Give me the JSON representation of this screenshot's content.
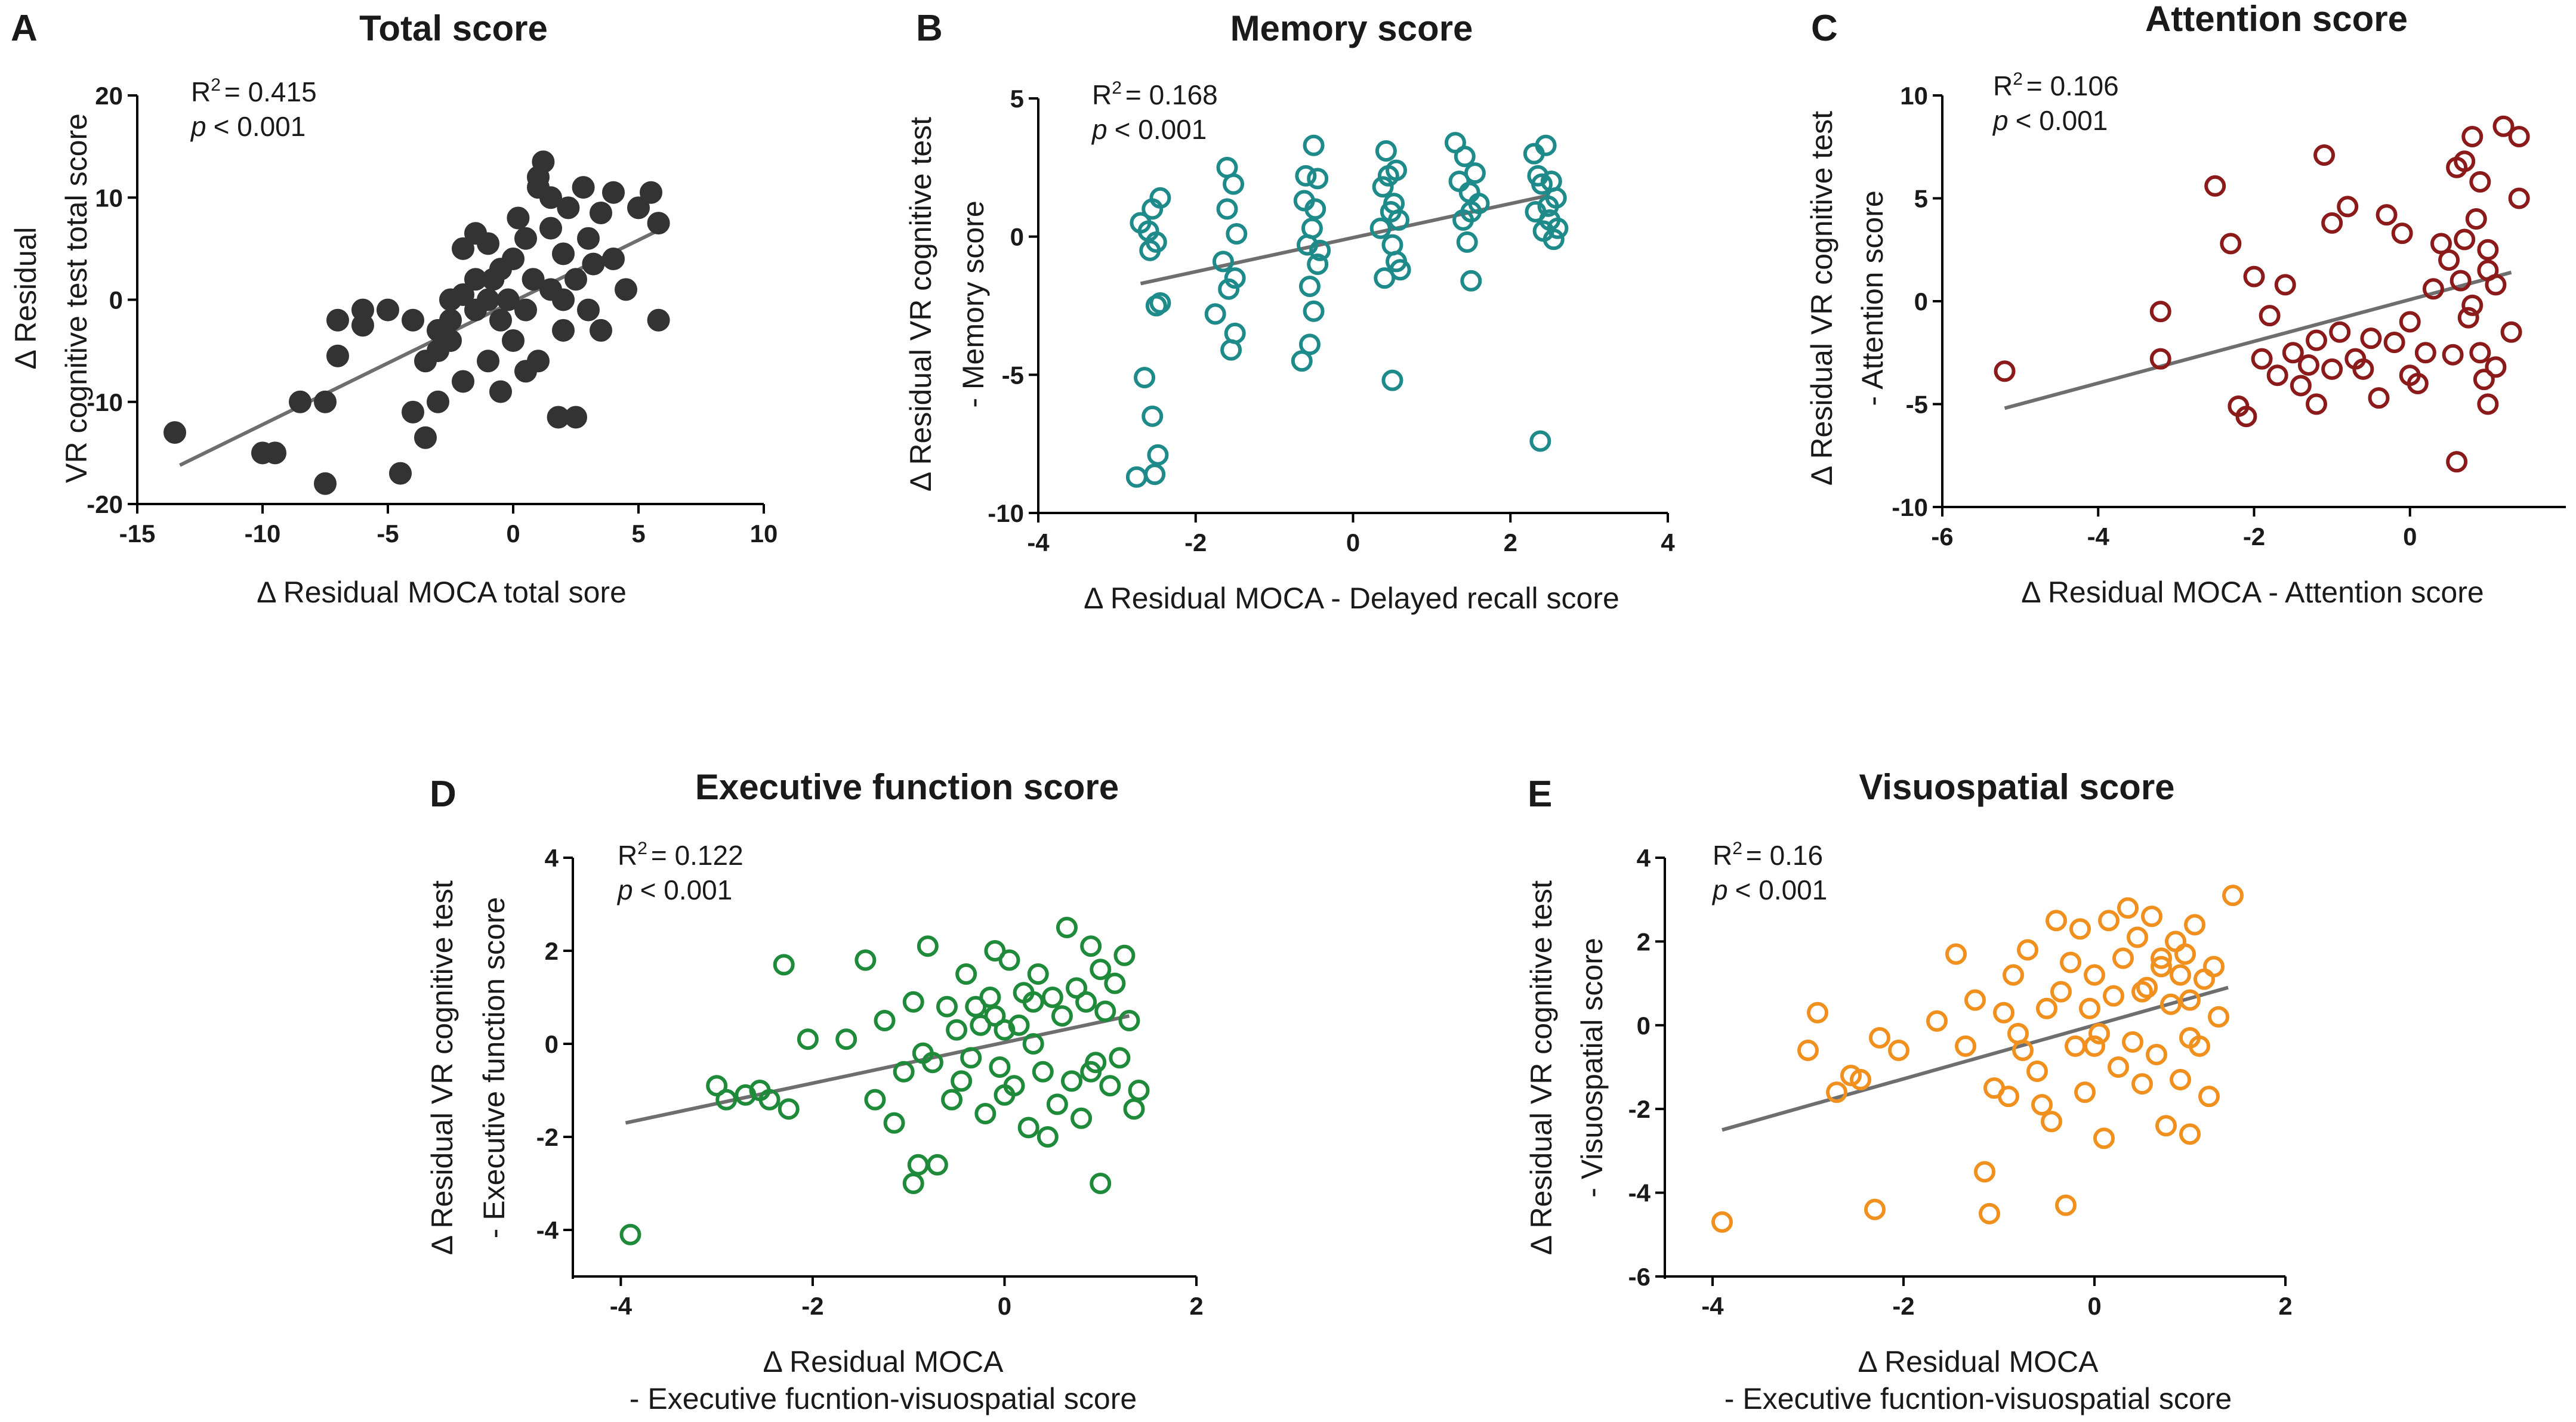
{
  "chart_data": [
    {
      "panel": "A",
      "type": "scatter",
      "title": "Total score",
      "xlabel": "Δ Residual MOCA total sore",
      "ylabel_lines": [
        "Δ Residual",
        "VR cognitive test  total score"
      ],
      "r2_label": "R",
      "r2_value": "= 0.415",
      "p_label": "p",
      "p_value": "< 0.001",
      "xlim": [
        -15,
        10
      ],
      "ylim": [
        -20,
        20
      ],
      "xticks": [
        -15,
        -10,
        -5,
        0,
        5,
        10
      ],
      "yticks": [
        -20,
        -10,
        0,
        10,
        20
      ],
      "marker": "filled",
      "color": "#333333",
      "fit": {
        "x": [
          -13.3,
          5.8
        ],
        "y": [
          -16.2,
          6.8
        ]
      },
      "x": [
        -13.5,
        -10.0,
        -9.5,
        -8.5,
        -7.5,
        -7.5,
        -7.0,
        -7.0,
        -6.0,
        -6.0,
        -5.0,
        -4.5,
        -4.0,
        -4.0,
        -3.5,
        -3.5,
        -3.0,
        -3.0,
        -3.0,
        -2.5,
        -2.5,
        -2.5,
        -2.0,
        -2.0,
        -2.0,
        -1.5,
        -1.5,
        -1.5,
        -1.0,
        -1.0,
        -1.0,
        -0.8,
        -0.5,
        -0.5,
        -0.5,
        -0.2,
        0.0,
        0.0,
        0.2,
        0.5,
        0.5,
        0.8,
        1.0,
        1.0,
        1.2,
        1.5,
        1.5,
        1.5,
        1.8,
        2.0,
        2.0,
        2.2,
        2.5,
        2.5,
        2.8,
        3.0,
        3.0,
        3.2,
        3.5,
        3.5,
        4.0,
        4.0,
        4.5,
        5.0,
        5.5,
        5.8,
        5.8,
        1.0,
        2.0,
        0.5
      ],
      "y": [
        -13.0,
        -15.0,
        -15.0,
        -10.0,
        -18.0,
        -10.0,
        -5.5,
        -2.0,
        -1.0,
        -2.5,
        -1.0,
        -17.0,
        -11.0,
        -2.0,
        -13.5,
        -6.0,
        -10.0,
        -5.0,
        -3.0,
        -4.0,
        -2.0,
        0.0,
        -8.0,
        5.0,
        0.5,
        -1.0,
        2.0,
        6.5,
        -6.0,
        0.0,
        5.5,
        2.0,
        -9.0,
        -2.0,
        3.0,
        0.0,
        -4.0,
        4.0,
        8.0,
        -1.0,
        6.0,
        2.0,
        -6.0,
        11.0,
        13.5,
        1.0,
        7.0,
        10.0,
        -11.5,
        -3.0,
        4.5,
        9.0,
        -11.5,
        2.0,
        11.0,
        6.0,
        -1.0,
        3.5,
        8.5,
        -3.0,
        4.0,
        10.5,
        1.0,
        9.0,
        10.5,
        7.5,
        -2.0,
        12.0,
        0.0,
        -7.0
      ]
    },
    {
      "panel": "B",
      "type": "scatter",
      "title": "Memory score",
      "xlabel": "Δ Residual MOCA - Delayed recall score",
      "ylabel_lines": [
        "Δ Residual VR cognitive test",
        "- Memory score"
      ],
      "r2_label": "R",
      "r2_value": "= 0.168",
      "p_label": "p",
      "p_value": "< 0.001",
      "xlim": [
        -4,
        4
      ],
      "ylim": [
        -10,
        5
      ],
      "xticks": [
        -4,
        -2,
        0,
        2,
        4
      ],
      "yticks": [
        -10,
        -5,
        0,
        5
      ],
      "marker": "open",
      "color": "#1f8a8a",
      "fit": {
        "x": [
          -2.7,
          2.5
        ],
        "y": [
          -1.7,
          1.5
        ]
      },
      "x": [
        -2.75,
        -2.7,
        -2.65,
        -2.6,
        -2.58,
        -2.55,
        -2.55,
        -2.52,
        -2.5,
        -2.5,
        -2.48,
        -2.45,
        -2.45,
        -1.75,
        -1.65,
        -1.6,
        -1.6,
        -1.58,
        -1.55,
        -1.52,
        -1.5,
        -1.5,
        -1.48,
        -0.65,
        -0.62,
        -0.6,
        -0.58,
        -0.55,
        -0.55,
        -0.52,
        -0.5,
        -0.5,
        -0.48,
        -0.45,
        -0.45,
        -0.42,
        0.35,
        0.38,
        0.4,
        0.42,
        0.45,
        0.48,
        0.5,
        0.5,
        0.52,
        0.55,
        0.55,
        0.58,
        0.6,
        1.3,
        1.35,
        1.4,
        1.42,
        1.45,
        1.48,
        1.5,
        1.5,
        1.55,
        1.6,
        2.3,
        2.32,
        2.35,
        2.38,
        2.4,
        2.42,
        2.45,
        2.48,
        2.5,
        2.52,
        2.55,
        2.58,
        2.6
      ],
      "y": [
        -8.7,
        0.5,
        -5.1,
        0.2,
        -0.5,
        -6.5,
        1.0,
        -8.6,
        -0.2,
        -2.5,
        -7.9,
        -2.4,
        1.4,
        -2.8,
        -0.9,
        2.5,
        1.0,
        -1.9,
        -4.1,
        1.9,
        -1.5,
        -3.5,
        0.1,
        -4.5,
        1.3,
        2.2,
        -0.3,
        -1.8,
        -3.9,
        0.3,
        -2.7,
        3.3,
        1.0,
        2.1,
        -1.0,
        -0.5,
        0.3,
        1.8,
        -1.5,
        3.1,
        2.2,
        0.9,
        -5.2,
        -0.3,
        1.2,
        2.4,
        -0.9,
        0.6,
        -1.2,
        3.4,
        2.0,
        0.6,
        2.9,
        -0.2,
        1.6,
        -1.6,
        0.9,
        2.3,
        1.2,
        3.0,
        0.9,
        2.2,
        -7.4,
        1.9,
        0.2,
        3.3,
        1.1,
        0.6,
        2.0,
        -0.1,
        1.4,
        0.3
      ]
    },
    {
      "panel": "C",
      "type": "scatter",
      "title": "Attention score",
      "xlabel": "Δ Residual MOCA - Attention score",
      "ylabel_lines": [
        "Δ Residual VR cognitive test",
        "- Attention score"
      ],
      "r2_label": "R",
      "r2_value": "= 0.106",
      "p_label": "p",
      "p_value": "< 0.001",
      "xlim": [
        -6,
        2
      ],
      "ylim": [
        -10,
        10
      ],
      "xticks": [
        -6,
        -4,
        -2,
        0
      ],
      "yticks": [
        -10,
        -5,
        0,
        5,
        10
      ],
      "marker": "open",
      "color": "#8b1a1a",
      "fit": {
        "x": [
          -5.2,
          1.3
        ],
        "y": [
          -5.2,
          1.4
        ]
      },
      "x": [
        -5.2,
        -3.2,
        -3.2,
        -2.5,
        -2.3,
        -2.2,
        -2.1,
        -2.0,
        -1.9,
        -1.8,
        -1.7,
        -1.6,
        -1.5,
        -1.4,
        -1.3,
        -1.2,
        -1.2,
        -1.1,
        -1.0,
        -1.0,
        -0.9,
        -0.8,
        -0.7,
        -0.6,
        -0.5,
        -0.4,
        -0.3,
        -0.2,
        -0.1,
        0.0,
        0.0,
        0.1,
        0.2,
        0.3,
        0.4,
        0.5,
        0.6,
        0.6,
        0.7,
        0.8,
        0.8,
        0.9,
        0.9,
        1.0,
        1.0,
        1.1,
        1.1,
        1.2,
        1.3,
        1.4,
        1.4,
        1.0,
        0.7,
        0.85,
        0.95,
        0.75,
        0.65,
        0.55
      ],
      "y": [
        -3.4,
        -0.5,
        -2.8,
        5.6,
        2.8,
        -5.1,
        -5.6,
        1.2,
        -2.8,
        -0.7,
        -3.6,
        0.8,
        -2.5,
        -4.1,
        -3.1,
        -5.0,
        -1.9,
        7.1,
        3.8,
        -3.3,
        -1.5,
        4.6,
        -2.8,
        -3.3,
        -1.8,
        -4.7,
        4.2,
        -2.0,
        3.3,
        -1.0,
        -3.6,
        -4.0,
        -2.5,
        0.6,
        2.8,
        2.0,
        -7.8,
        6.5,
        3.0,
        -0.2,
        8.0,
        5.8,
        -2.5,
        -5.0,
        2.5,
        0.8,
        -3.2,
        8.5,
        -1.5,
        5.0,
        8.0,
        1.5,
        6.8,
        4.0,
        -3.8,
        -0.8,
        1.0,
        -2.6
      ]
    },
    {
      "panel": "D",
      "type": "scatter",
      "title": "Executive function score",
      "xlabel_lines": [
        "Δ Residual MOCA",
        "- Executive fucntion-visuospatial score"
      ],
      "ylabel_lines": [
        "Δ Residual VR cognitive test",
        "- Executive function score"
      ],
      "r2_label": "R",
      "r2_value": "= 0.122",
      "p_label": "p",
      "p_value": "< 0.001",
      "xlim": [
        -4.5,
        2
      ],
      "ylim": [
        -5,
        4
      ],
      "xticks": [
        -4,
        -2,
        0,
        2
      ],
      "yticks": [
        -4,
        -2,
        0,
        2,
        4
      ],
      "marker": "open",
      "color": "#1e8a3a",
      "fit": {
        "x": [
          -3.95,
          1.3
        ],
        "y": [
          -1.7,
          0.6
        ]
      },
      "x": [
        -3.9,
        -3.0,
        -2.9,
        -2.7,
        -2.55,
        -2.45,
        -2.3,
        -2.25,
        -2.05,
        -1.65,
        -1.45,
        -1.35,
        -1.25,
        -1.15,
        -1.05,
        -0.95,
        -0.95,
        -0.9,
        -0.85,
        -0.8,
        -0.75,
        -0.7,
        -0.6,
        -0.55,
        -0.5,
        -0.45,
        -0.4,
        -0.35,
        -0.3,
        -0.25,
        -0.2,
        -0.15,
        -0.1,
        -0.05,
        0.0,
        0.0,
        0.05,
        0.1,
        0.15,
        0.2,
        0.25,
        0.3,
        0.35,
        0.4,
        0.45,
        0.5,
        0.55,
        0.6,
        0.65,
        0.7,
        0.75,
        0.8,
        0.85,
        0.9,
        0.95,
        1.0,
        1.0,
        1.05,
        1.1,
        1.15,
        1.2,
        1.25,
        1.3,
        1.35,
        1.4,
        0.9,
        0.3,
        -0.1
      ],
      "y": [
        -4.1,
        -0.9,
        -1.2,
        -1.1,
        -1.0,
        -1.2,
        1.7,
        -1.4,
        0.1,
        0.1,
        1.8,
        -1.2,
        0.5,
        -1.7,
        -0.6,
        -3.0,
        0.9,
        -2.6,
        -0.2,
        2.1,
        -0.4,
        -2.6,
        0.8,
        -1.2,
        0.3,
        -0.8,
        1.5,
        -0.3,
        0.8,
        0.4,
        -1.5,
        1.0,
        2.0,
        -0.5,
        0.3,
        -1.1,
        1.8,
        -0.9,
        0.4,
        1.1,
        -1.8,
        0.0,
        1.5,
        -0.6,
        -2.0,
        1.0,
        -1.3,
        0.6,
        2.5,
        -0.8,
        1.2,
        -1.6,
        0.9,
        2.1,
        -0.4,
        1.6,
        -3.0,
        0.7,
        -0.9,
        1.3,
        -0.3,
        1.9,
        0.5,
        -1.4,
        -1.0,
        -0.6,
        0.9,
        0.6
      ]
    },
    {
      "panel": "E",
      "type": "scatter",
      "title": "Visuospatial score",
      "xlabel_lines": [
        "Δ Residual MOCA",
        "- Executive fucntion-visuospatial score"
      ],
      "ylabel_lines": [
        "Δ Residual VR cognitive test",
        "- Visuospatial score"
      ],
      "r2_label": "R",
      "r2_value": "= 0.16",
      "p_label": "p",
      "p_value": "< 0.001",
      "xlim": [
        -4.5,
        2
      ],
      "ylim": [
        -6,
        4
      ],
      "xticks": [
        -4,
        -2,
        0,
        2
      ],
      "yticks": [
        -6,
        -4,
        -2,
        0,
        2,
        4
      ],
      "marker": "open",
      "color": "#f0901e",
      "fit": {
        "x": [
          -3.9,
          1.4
        ],
        "y": [
          -2.5,
          0.9
        ]
      },
      "x": [
        -3.9,
        -3.0,
        -2.9,
        -2.7,
        -2.55,
        -2.45,
        -2.3,
        -2.25,
        -2.05,
        -1.65,
        -1.45,
        -1.35,
        -1.25,
        -1.15,
        -1.1,
        -1.05,
        -0.95,
        -0.9,
        -0.85,
        -0.8,
        -0.75,
        -0.7,
        -0.6,
        -0.55,
        -0.5,
        -0.45,
        -0.4,
        -0.35,
        -0.3,
        -0.25,
        -0.2,
        -0.15,
        -0.1,
        -0.05,
        0.0,
        0.05,
        0.1,
        0.15,
        0.2,
        0.25,
        0.3,
        0.35,
        0.4,
        0.45,
        0.5,
        0.55,
        0.6,
        0.65,
        0.7,
        0.75,
        0.8,
        0.85,
        0.9,
        0.95,
        1.0,
        1.0,
        1.05,
        1.1,
        1.15,
        1.2,
        1.25,
        1.3,
        1.45,
        1.0,
        0.5,
        0.0,
        0.9,
        0.7
      ],
      "y": [
        -4.7,
        -0.6,
        0.3,
        -1.6,
        -1.2,
        -1.3,
        -4.4,
        -0.3,
        -0.6,
        0.1,
        1.7,
        -0.5,
        0.6,
        -3.5,
        -4.5,
        -1.5,
        0.3,
        -1.7,
        1.2,
        -0.2,
        -0.6,
        1.8,
        -1.1,
        -1.9,
        0.4,
        -2.3,
        2.5,
        0.8,
        -4.3,
        1.5,
        -0.5,
        2.3,
        -1.6,
        0.4,
        1.2,
        -0.2,
        -2.7,
        2.5,
        0.7,
        -1.0,
        1.6,
        2.8,
        -0.4,
        2.1,
        -1.4,
        0.9,
        2.6,
        -0.7,
        1.4,
        -2.4,
        0.5,
        2.0,
        -1.3,
        1.7,
        0.6,
        -2.6,
        2.4,
        -0.5,
        1.1,
        -1.7,
        1.4,
        0.2,
        3.1,
        -0.3,
        0.8,
        -0.5,
        1.2,
        1.6
      ]
    }
  ]
}
